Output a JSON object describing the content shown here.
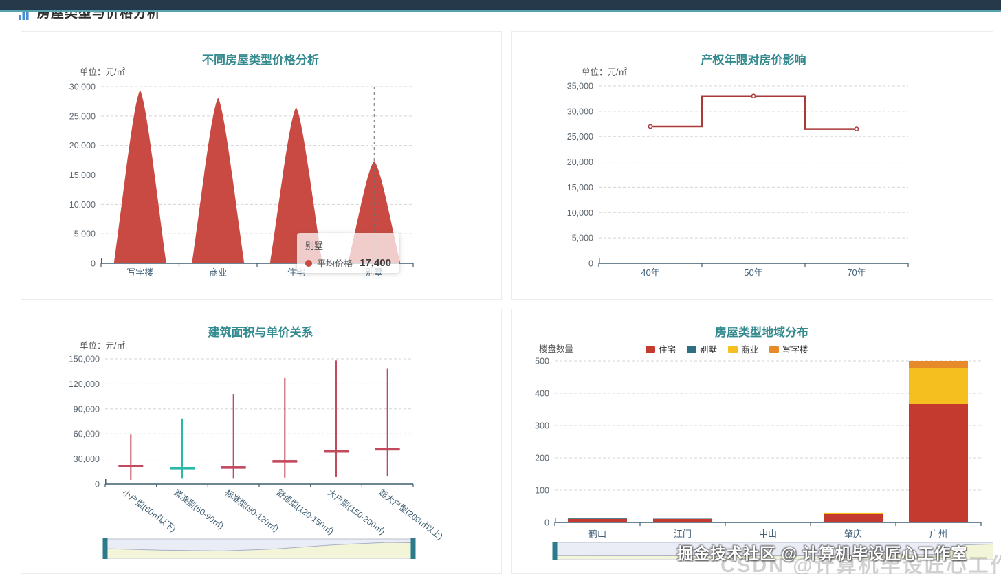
{
  "header": {
    "title": "房屋类型与价格分析",
    "icon": "bar-chart-icon"
  },
  "theme": {
    "header_bar_color": "#26394a",
    "accent_line_color": "#54a3ad",
    "chart_title_color": "#338a8f",
    "axis_line_color": "#3e5e71"
  },
  "watermark": {
    "primary": "掘金技术社区 @ 计算机毕设匠心工作室",
    "secondary": "CSDN @计算机毕设匠心工作室"
  },
  "chart_data": [
    {
      "id": "price-by-house-type",
      "type": "bar",
      "subtype": "pictorial-peak",
      "title": "不同房屋类型价格分析",
      "unit_label": "单位：元/㎡",
      "series_name": "平均价格",
      "categories": [
        "写字楼",
        "商业",
        "住宅",
        "别墅"
      ],
      "values": [
        29400,
        28100,
        26500,
        17400
      ],
      "ylim": [
        0,
        30000
      ],
      "ytick_interval": 5000,
      "grid": true,
      "bar_color": "#c84a42",
      "axis_pointer_index": 3,
      "tooltip": {
        "category": "别墅",
        "series": "平均价格",
        "value": "17,400",
        "marker_color": "#c84a42"
      }
    },
    {
      "id": "property-term-effect",
      "type": "line",
      "subtype": "step-middle",
      "title": "产权年限对房价影响",
      "unit_label": "单位：元/㎡",
      "categories": [
        "40年",
        "50年",
        "70年"
      ],
      "values": [
        27000,
        33000,
        26500
      ],
      "ylim": [
        0,
        35000
      ],
      "ytick_interval": 5000,
      "grid": true,
      "line_color": "#a93a38"
    },
    {
      "id": "area-vs-unit-price",
      "type": "candlestick",
      "title": "建筑面积与单价关系",
      "unit_label": "单位：元/㎡",
      "categories": [
        "小户型(60㎡以下)",
        "紧凑型(60-90㎡)",
        "标准型(90-120㎡)",
        "舒适型(120-150㎡)",
        "大户型(150-200㎡)",
        "超大户型(200㎡以上)"
      ],
      "value_format": "[open, close, low, high]",
      "values": [
        [
          20800,
          21800,
          5000,
          59000
        ],
        [
          19600,
          18600,
          6300,
          78500
        ],
        [
          19400,
          20400,
          6300,
          108000
        ],
        [
          26800,
          27800,
          7600,
          127000
        ],
        [
          38500,
          39500,
          8200,
          148000
        ],
        [
          41200,
          42200,
          9000,
          138000
        ]
      ],
      "ylim": [
        0,
        150000
      ],
      "ytick_interval": 30000,
      "grid": true,
      "up_color": "#c2495e",
      "down_color": "#2ab9a8",
      "has_datazoom_slider": true
    },
    {
      "id": "region-distribution",
      "type": "bar",
      "subtype": "stacked",
      "title": "房屋类型地域分布",
      "unit_label": "楼盘数量",
      "categories": [
        "鹤山",
        "江门",
        "中山",
        "肇庆",
        "广州"
      ],
      "legend": [
        "住宅",
        "别墅",
        "商业",
        "写字楼"
      ],
      "legend_position": "top",
      "series": [
        {
          "name": "住宅",
          "color": "#c43a2f",
          "values": [
            11,
            11,
            0,
            27,
            367
          ]
        },
        {
          "name": "别墅",
          "color": "#2e6f83",
          "values": [
            3,
            1,
            0,
            0,
            0
          ]
        },
        {
          "name": "商业",
          "color": "#f5bf20",
          "values": [
            0,
            0,
            2,
            3,
            111
          ]
        },
        {
          "name": "写字楼",
          "color": "#e68a2a",
          "values": [
            0,
            0,
            0,
            0,
            22
          ]
        }
      ],
      "ylim": [
        0,
        500
      ],
      "ytick_interval": 100,
      "grid": true,
      "has_datazoom_slider": true
    }
  ]
}
